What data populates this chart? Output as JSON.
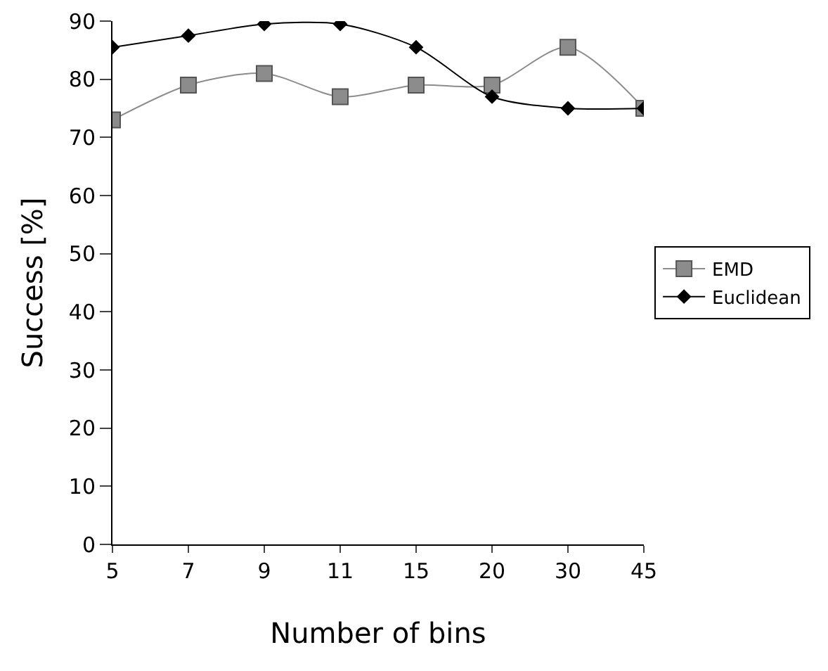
{
  "chart_data": {
    "type": "line",
    "xlabel": "Number of bins",
    "ylabel": "Success [%]",
    "categories": [
      "5",
      "7",
      "9",
      "11",
      "15",
      "20",
      "30",
      "45"
    ],
    "series": [
      {
        "name": "EMD",
        "color": "#8c8c8c",
        "marker": "square",
        "values": [
          73,
          79,
          81,
          77,
          79,
          79,
          85.5,
          75
        ]
      },
      {
        "name": "Euclidean",
        "color": "#000000",
        "marker": "diamond",
        "values": [
          85.5,
          87.5,
          89.5,
          89.5,
          85.5,
          77,
          75,
          75
        ]
      }
    ],
    "ylim": [
      0,
      90
    ],
    "yticks": [
      0,
      10,
      20,
      30,
      40,
      50,
      60,
      70,
      80,
      90
    ],
    "grid": false,
    "legend": "right"
  }
}
